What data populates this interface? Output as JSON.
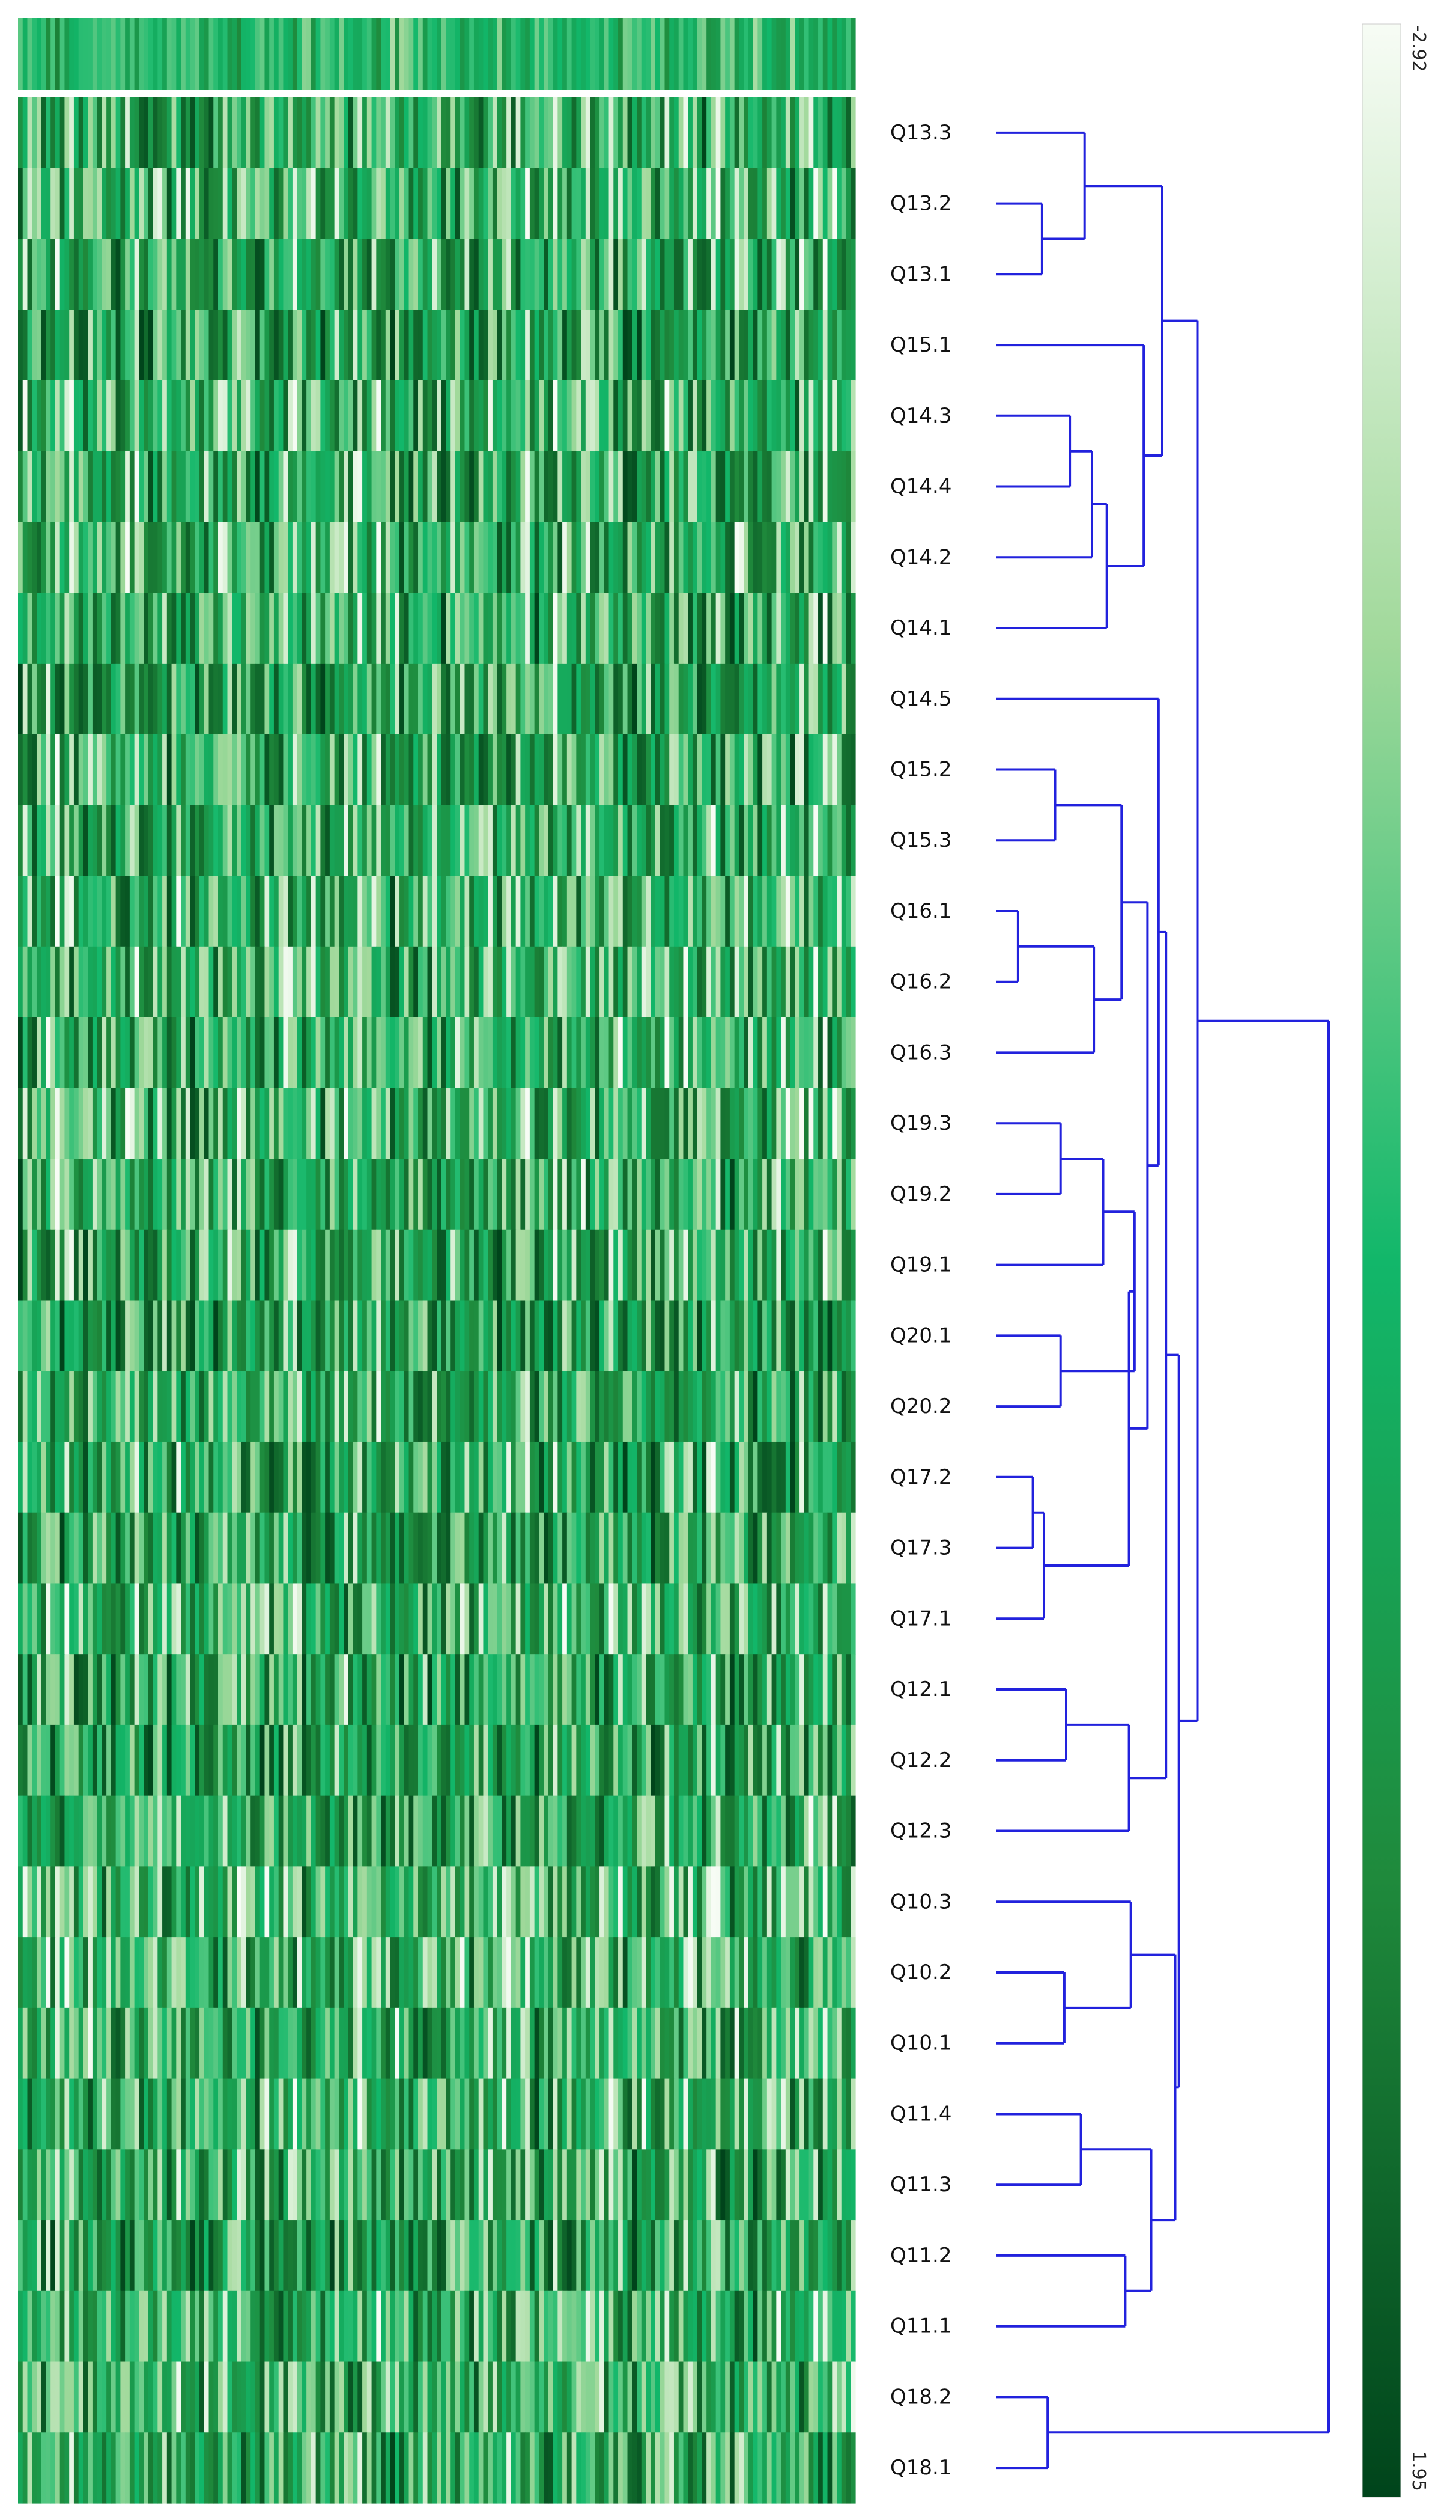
{
  "chart_data": {
    "type": "heatmap",
    "title": "",
    "rows": [
      "Q13.3",
      "Q13.2",
      "Q13.1",
      "Q15.1",
      "Q14.3",
      "Q14.4",
      "Q14.2",
      "Q14.1",
      "Q14.5",
      "Q15.2",
      "Q15.3",
      "Q16.1",
      "Q16.2",
      "Q16.3",
      "Q19.3",
      "Q19.2",
      "Q19.1",
      "Q20.1",
      "Q20.2",
      "Q17.2",
      "Q17.3",
      "Q17.1",
      "Q12.1",
      "Q12.2",
      "Q12.3",
      "Q10.3",
      "Q10.2",
      "Q10.1",
      "Q11.4",
      "Q11.3",
      "Q11.2",
      "Q11.1",
      "Q18.2",
      "Q18.1"
    ],
    "column_count": 180,
    "colorscale": {
      "min": -2.92,
      "max": 1.95,
      "min_label": "-2.92",
      "max_label": "1.95",
      "colors": [
        "#f7fcf5",
        "#a1d99b",
        "#12b76a",
        "#1f8a3c",
        "#00441b"
      ]
    },
    "dendrogram": {
      "side": "right",
      "color": "#2222dd",
      "merges": [
        {
          "a": "Q13.1",
          "b": "Q13.2",
          "height": 0.25
        },
        {
          "a": "Q13.3",
          "b": "m1",
          "height": 0.48
        },
        {
          "a": "Q14.3",
          "b": "Q14.4",
          "height": 0.4
        },
        {
          "a": "Q14.2",
          "b": "m3",
          "height": 0.52
        },
        {
          "a": "Q14.1",
          "b": "m4",
          "height": 0.6
        },
        {
          "a": "Q15.1",
          "b": "m5",
          "height": 0.8
        },
        {
          "a": "m2",
          "b": "m6",
          "height": 0.9
        },
        {
          "a": "Q15.2",
          "b": "Q15.3",
          "height": 0.32
        },
        {
          "a": "Q16.1",
          "b": "Q16.2",
          "height": 0.12
        },
        {
          "a": "m9",
          "b": "Q16.3",
          "height": 0.53
        },
        {
          "a": "m8",
          "b": "m10",
          "height": 0.68
        },
        {
          "a": "Q19.3",
          "b": "Q19.2",
          "height": 0.35
        },
        {
          "a": "m12",
          "b": "Q19.1",
          "height": 0.58
        },
        {
          "a": "Q20.1",
          "b": "Q20.2",
          "height": 0.35
        },
        {
          "a": "m13",
          "b": "m14",
          "height": 0.75
        },
        {
          "a": "Q17.2",
          "b": "Q17.3",
          "height": 0.2
        },
        {
          "a": "m16",
          "b": "Q17.1",
          "height": 0.26
        },
        {
          "a": "m15",
          "b": "m17",
          "height": 0.72
        },
        {
          "a": "m11",
          "b": "m18",
          "height": 0.82
        },
        {
          "a": "Q14.5",
          "b": "m19",
          "height": 0.88
        },
        {
          "a": "Q12.1",
          "b": "Q12.2",
          "height": 0.38
        },
        {
          "a": "m21",
          "b": "Q12.3",
          "height": 0.72
        },
        {
          "a": "m20",
          "b": "m22",
          "height": 0.92
        },
        {
          "a": "Q10.2",
          "b": "Q10.1",
          "height": 0.37
        },
        {
          "a": "Q10.3",
          "b": "m24",
          "height": 0.73
        },
        {
          "a": "Q11.4",
          "b": "Q11.3",
          "height": 0.46
        },
        {
          "a": "Q11.2",
          "b": "Q11.1",
          "height": 0.7
        },
        {
          "a": "m26",
          "b": "m27",
          "height": 0.84
        },
        {
          "a": "m25",
          "b": "m28",
          "height": 0.97
        },
        {
          "a": "m23",
          "b": "m29",
          "height": 0.99
        },
        {
          "a": "m7",
          "b": "m30",
          "height": 1.09
        },
        {
          "a": "Q18.2",
          "b": "Q18.1",
          "height": 0.28
        },
        {
          "a": "m31",
          "b": "m32",
          "height": 1.8
        }
      ]
    }
  }
}
